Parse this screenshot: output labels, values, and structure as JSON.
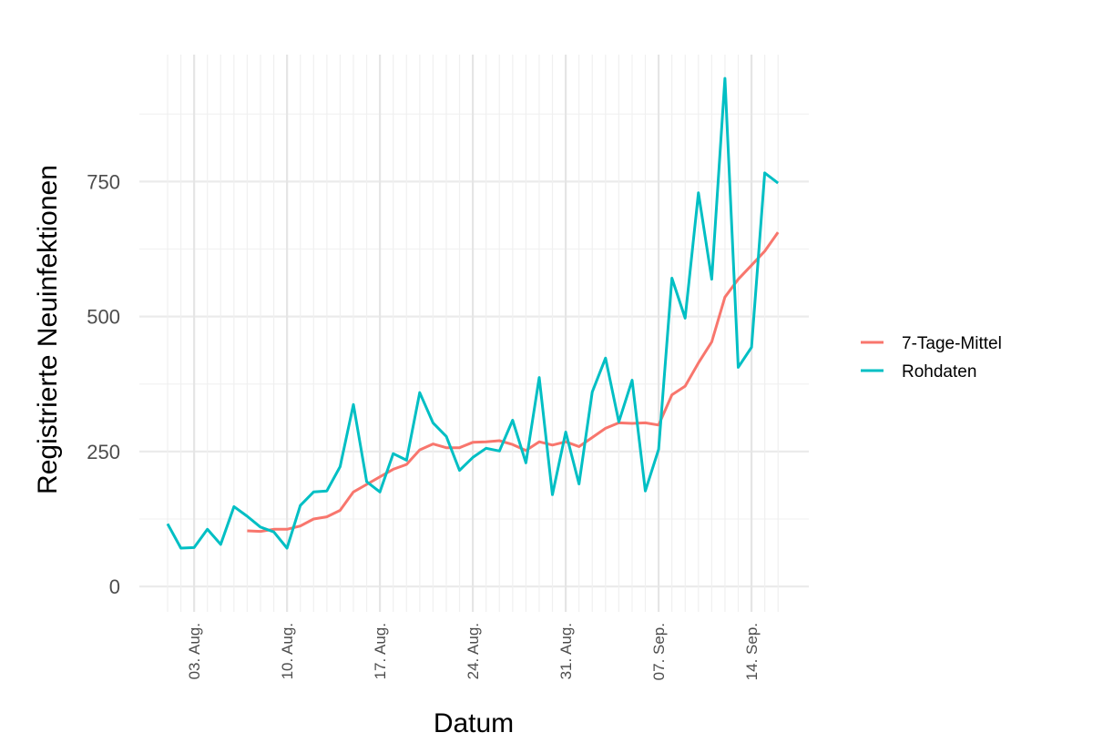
{
  "chart_data": {
    "type": "line",
    "y_label": "Registrierte Neuinfektionen",
    "x_label": "Datum",
    "categories": [
      null,
      null,
      "03. Aug.",
      null,
      null,
      null,
      null,
      null,
      null,
      "10. Aug.",
      null,
      null,
      null,
      null,
      null,
      null,
      "17. Aug.",
      null,
      null,
      null,
      null,
      null,
      null,
      "24. Aug.",
      null,
      null,
      null,
      null,
      null,
      null,
      "31. Aug.",
      null,
      null,
      null,
      null,
      null,
      null,
      "07. Sep.",
      null,
      null,
      null,
      null,
      null,
      null,
      "14. Sep.",
      null,
      null
    ],
    "series": [
      {
        "name": "7-Tage-Mittel",
        "color": "#F8766D",
        "values": [
          null,
          null,
          null,
          null,
          null,
          null,
          103,
          102,
          106,
          106,
          112,
          125,
          129,
          141,
          175,
          189,
          203,
          217,
          226,
          253,
          264,
          257,
          257,
          267,
          268,
          270,
          263,
          252,
          268,
          262,
          268,
          259,
          276,
          293,
          303,
          302,
          303,
          299,
          355,
          371,
          414,
          453,
          536,
          569,
          595,
          621,
          656
        ]
      },
      {
        "name": "Rohdaten",
        "color": "#00BFC4",
        "values": [
          116,
          71,
          72,
          106,
          78,
          148,
          130,
          110,
          101,
          71,
          150,
          175,
          177,
          222,
          337,
          194,
          175,
          246,
          234,
          359,
          303,
          278,
          215,
          239,
          256,
          251,
          308,
          229,
          387,
          170,
          286,
          190,
          360,
          423,
          305,
          382,
          177,
          254,
          571,
          497,
          729,
          569,
          941,
          406,
          443,
          766,
          747
        ]
      }
    ],
    "ylim": [
      -47,
      985
    ],
    "yticks": [
      0,
      250,
      500,
      750
    ],
    "grid": true,
    "legend": "right"
  }
}
